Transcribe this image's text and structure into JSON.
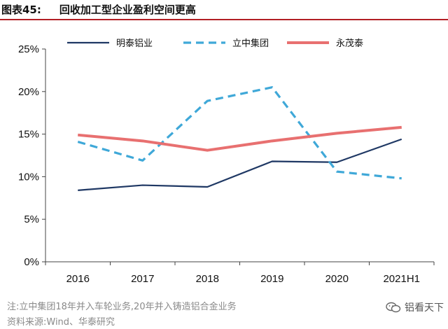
{
  "header": {
    "figure_label": "图表45:",
    "title_text": "回收加工型企业盈利空间更高"
  },
  "chart_data": {
    "type": "line",
    "categories": [
      "2016",
      "2017",
      "2018",
      "2019",
      "2020",
      "2021H1"
    ],
    "ylim": [
      0,
      25
    ],
    "yticks": [
      0,
      5,
      10,
      15,
      20,
      25
    ],
    "ytick_labels": [
      "0%",
      "5%",
      "10%",
      "15%",
      "20%",
      "25%"
    ],
    "series": [
      {
        "name": "明泰铝业",
        "values": [
          8.4,
          9.0,
          8.8,
          11.8,
          11.7,
          14.4
        ],
        "color": "#1f3864",
        "style": "solid"
      },
      {
        "name": "立中集团",
        "values": [
          14.1,
          11.9,
          18.9,
          20.5,
          10.6,
          9.8
        ],
        "color": "#3fa8d8",
        "style": "dashed"
      },
      {
        "name": "永茂泰",
        "values": [
          14.9,
          14.2,
          13.1,
          14.2,
          15.1,
          15.8
        ],
        "color": "#e87070",
        "style": "solid"
      }
    ],
    "legend_position": "top"
  },
  "notes": {
    "line1": "注:立中集团18年并入车轮业务,20年并入铸造铝合金业务",
    "line2": "资料来源:Wind、华泰研究"
  },
  "watermark": {
    "text": "铝看天下"
  }
}
